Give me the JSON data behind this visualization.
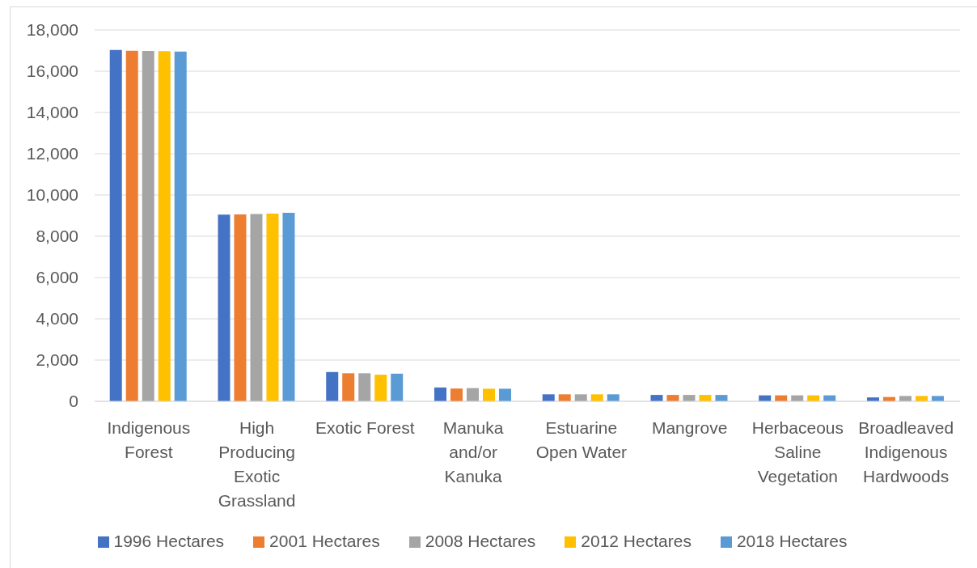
{
  "chart_data": {
    "type": "bar",
    "categories": [
      "Indigenous Forest",
      "High Producing Exotic Grassland",
      "Exotic Forest",
      "Manuka and/or Kanuka",
      "Estuarine Open Water",
      "Mangrove",
      "Herbaceous Saline Vegetation",
      "Broadleaved Indigenous Hardwoods"
    ],
    "series": [
      {
        "name": "1996 Hectares",
        "color": "#4472c4",
        "values": [
          17030,
          9050,
          1420,
          670,
          340,
          310,
          290,
          190
        ]
      },
      {
        "name": "2001 Hectares",
        "color": "#ed7d31",
        "values": [
          16990,
          9060,
          1360,
          620,
          340,
          310,
          290,
          210
        ]
      },
      {
        "name": "2008 Hectares",
        "color": "#a5a5a5",
        "values": [
          16980,
          9080,
          1360,
          640,
          340,
          310,
          290,
          260
        ]
      },
      {
        "name": "2012 Hectares",
        "color": "#ffc000",
        "values": [
          16970,
          9100,
          1290,
          610,
          340,
          310,
          290,
          260
        ]
      },
      {
        "name": "2018 Hectares",
        "color": "#5b9bd5",
        "values": [
          16950,
          9140,
          1340,
          610,
          340,
          310,
          290,
          260
        ]
      }
    ],
    "ylim": [
      0,
      18000
    ],
    "yticks": [
      {
        "value": 0,
        "label": "0"
      },
      {
        "value": 2000,
        "label": "2,000"
      },
      {
        "value": 4000,
        "label": "4,000"
      },
      {
        "value": 6000,
        "label": "6,000"
      },
      {
        "value": 8000,
        "label": "8,000"
      },
      {
        "value": 10000,
        "label": "10,000"
      },
      {
        "value": 12000,
        "label": "12,000"
      },
      {
        "value": 14000,
        "label": "14,000"
      },
      {
        "value": 16000,
        "label": "16,000"
      },
      {
        "value": 18000,
        "label": "18,000"
      }
    ],
    "grid": "y",
    "legend": "bottom"
  }
}
